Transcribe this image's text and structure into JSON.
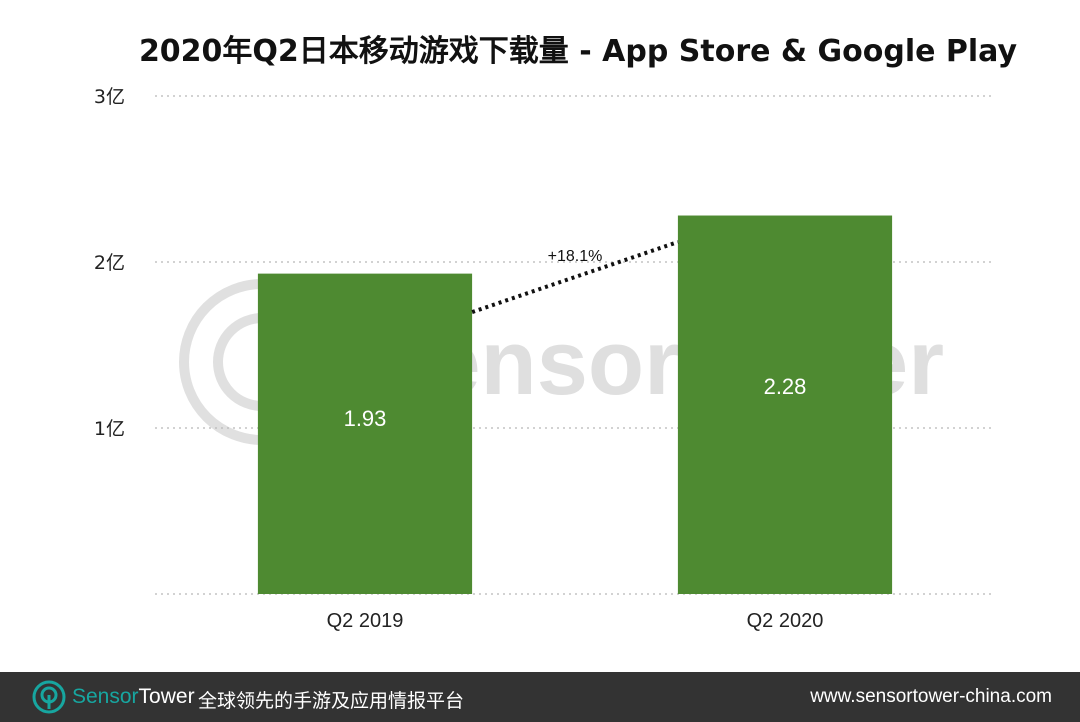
{
  "chart_data": {
    "type": "bar",
    "title": "2020年Q2日本移动游戏下载量 - App Store & Google Play",
    "categories": [
      "Q2  2019",
      "Q2 2020"
    ],
    "values": [
      1.93,
      2.28
    ],
    "data_labels": [
      "1.93",
      "2.28"
    ],
    "yticks": [
      1,
      2,
      3
    ],
    "ytick_labels": [
      "1亿",
      "2亿",
      "3亿"
    ],
    "ylim": [
      0,
      3
    ],
    "grid": true,
    "grid_style": "dotted",
    "bar_color": "#4e8a31",
    "annotation": "+18.1%"
  },
  "watermark": {
    "sensor": "Sensor",
    "tower": "Tower"
  },
  "footer": {
    "logo_icon": "sensortower-logo-icon",
    "brand_sensor": "Sensor",
    "brand_tower": "Tower",
    "slogan": "全球领先的手游及应用情报平台",
    "url": "www.sensortower-china.com",
    "accent_color": "#17a6a0"
  }
}
